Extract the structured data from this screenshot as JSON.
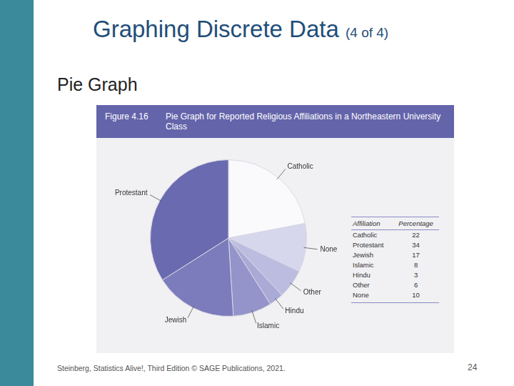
{
  "slide": {
    "title": "Graphing Discrete Data",
    "title_part": "(4 of 4)",
    "subtitle": "Pie Graph",
    "figure_number": "Figure 4.16",
    "footer": "Steinberg, Statistics Alive!, Third Edition © SAGE Publications, 2021.",
    "page_number": 24
  },
  "chart_data": {
    "type": "pie",
    "title": "Pie Graph for Reported Religious Affiliations in a Northeastern University Class",
    "categories": [
      "Catholic",
      "None",
      "Other",
      "Hindu",
      "Islamic",
      "Jewish",
      "Protestant"
    ],
    "values": [
      22,
      10,
      6,
      3,
      8,
      17,
      34
    ],
    "colors": [
      "#fafafd",
      "#d6d6ec",
      "#bcbce0",
      "#aaaad6",
      "#9494ca",
      "#7c7cbc",
      "#6a6ab0"
    ],
    "legend": false
  },
  "table": {
    "header": [
      "Affiliation",
      "Percentage"
    ],
    "rows": [
      [
        "Catholic",
        22
      ],
      [
        "Protestant",
        34
      ],
      [
        "Jewish",
        17
      ],
      [
        "Islamic",
        8
      ],
      [
        "Hindu",
        3
      ],
      [
        "Other",
        6
      ],
      [
        "None",
        10
      ]
    ]
  }
}
